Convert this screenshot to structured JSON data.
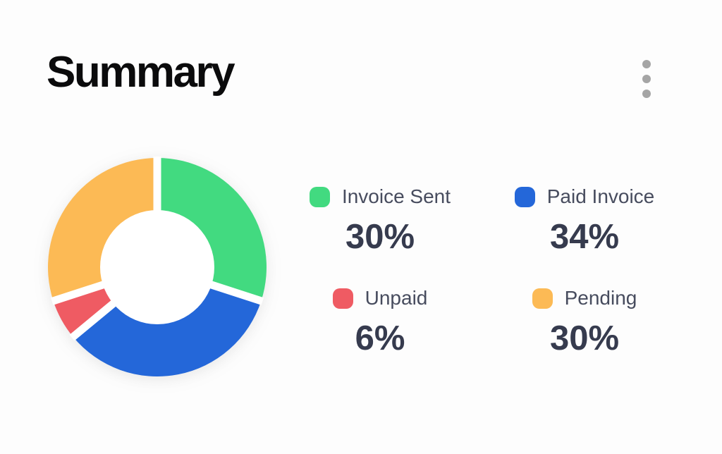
{
  "header": {
    "title": "Summary",
    "menu_icon": "kebab-vertical-dots"
  },
  "chart_data": {
    "type": "pie",
    "variant": "donut",
    "title": "Summary",
    "categories": [
      "Invoice Sent",
      "Paid Invoice",
      "Unpaid",
      "Pending"
    ],
    "values": [
      30,
      34,
      6,
      30
    ],
    "unit": "percent",
    "direction": "clockwise",
    "start_angle_deg": 0,
    "inner_radius_ratio": 0.52,
    "separator_color": "#ffffff",
    "legend_position": "right",
    "segments": [
      {
        "label": "Invoice Sent",
        "value": 30,
        "display": "30%",
        "color": "#42da80"
      },
      {
        "label": "Paid Invoice",
        "value": 34,
        "display": "34%",
        "color": "#2467d9"
      },
      {
        "label": "Unpaid",
        "value": 6,
        "display": "6%",
        "color": "#ef5b63"
      },
      {
        "label": "Pending",
        "value": 30,
        "display": "30%",
        "color": "#fcba55"
      }
    ]
  },
  "colors": {
    "background": "#fdfdfd",
    "title_text": "#0b0b0c",
    "label_text": "#474c5e",
    "value_text": "#363b4e",
    "menu_dots": "#a5a5a5"
  }
}
